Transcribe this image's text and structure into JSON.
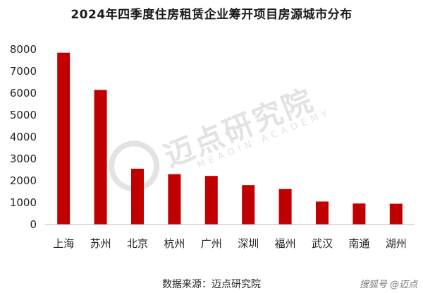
{
  "chart_data": {
    "type": "bar",
    "title": "2024年四季度住房租赁企业筹开项目房源城市分布",
    "categories": [
      "上海",
      "苏州",
      "北京",
      "杭州",
      "广州",
      "深圳",
      "福州",
      "武汉",
      "南通",
      "湖州"
    ],
    "values": [
      7850,
      6150,
      2550,
      2300,
      2220,
      1800,
      1620,
      1050,
      960,
      950
    ],
    "ylim": [
      0,
      8000
    ],
    "yticks": [
      0,
      1000,
      2000,
      3000,
      4000,
      5000,
      6000,
      7000,
      8000
    ],
    "grid": false,
    "bar_color": "#c00000",
    "xlabel": "",
    "ylabel": ""
  },
  "source": "数据来源：迈点研究院",
  "watermark": {
    "text": "迈点研究院",
    "sub": "MEADIN ACADEMY"
  },
  "credit": "搜狐号 @迈点"
}
